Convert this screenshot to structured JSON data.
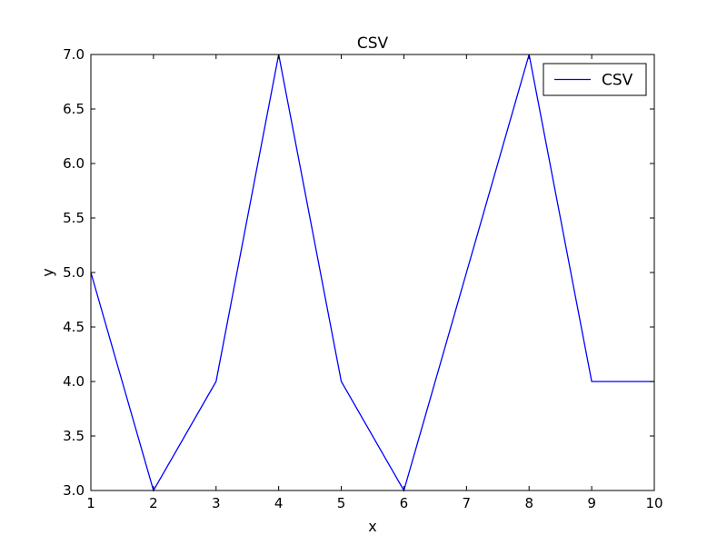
{
  "chart_data": {
    "type": "line",
    "title": "CSV",
    "xlabel": "x",
    "ylabel": "y",
    "xlim": [
      1,
      10
    ],
    "ylim": [
      3.0,
      7.0
    ],
    "xticks": [
      "1",
      "2",
      "3",
      "4",
      "5",
      "6",
      "7",
      "8",
      "9",
      "10"
    ],
    "yticks": [
      "3.0",
      "3.5",
      "4.0",
      "4.5",
      "5.0",
      "5.5",
      "6.0",
      "6.5",
      "7.0"
    ],
    "grid": false,
    "legend_position": "top-right",
    "series": [
      {
        "name": "CSV",
        "color": "#0000ff",
        "x": [
          1,
          2,
          3,
          4,
          5,
          6,
          7,
          8,
          9,
          10
        ],
        "y": [
          5,
          3,
          4,
          7,
          4,
          3,
          5,
          7,
          4,
          4
        ]
      }
    ]
  }
}
